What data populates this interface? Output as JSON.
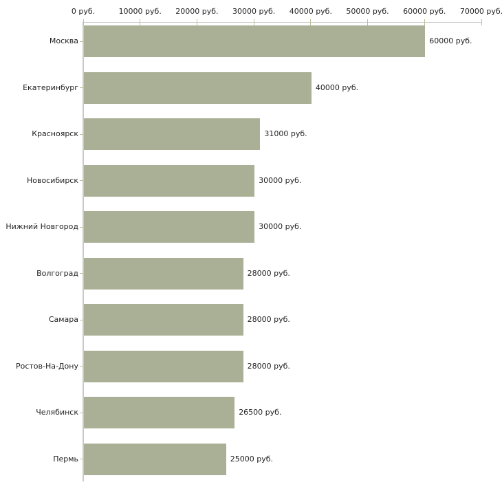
{
  "chart_data": {
    "type": "bar",
    "orientation": "horizontal",
    "title": "",
    "xlabel": "",
    "ylabel": "",
    "grid": false,
    "legend": "none",
    "categories": [
      "Москва",
      "Екатеринбург",
      "Красноярск",
      "Новосибирск",
      "Нижний Новгород",
      "Волгоград",
      "Самара",
      "Ростов-На-Дону",
      "Челябинск",
      "Пермь"
    ],
    "values": [
      60000,
      40000,
      31000,
      30000,
      30000,
      28000,
      28000,
      28000,
      26500,
      25000
    ],
    "value_labels": [
      "60000 руб.",
      "40000 руб.",
      "31000 руб.",
      "30000 руб.",
      "30000 руб.",
      "28000 руб.",
      "28000 руб.",
      "28000 руб.",
      "26500 руб.",
      "25000 руб."
    ],
    "x_axis": {
      "position": "top",
      "min": 0,
      "max": 70000,
      "ticks": [
        0,
        10000,
        20000,
        30000,
        40000,
        50000,
        60000,
        70000
      ],
      "tick_labels": [
        "0 руб.",
        "10000 руб.",
        "20000 руб.",
        "30000 руб.",
        "40000 руб.",
        "50000 руб.",
        "60000 руб.",
        "70000 руб."
      ],
      "unit": "руб."
    },
    "colors": {
      "bar": "#a9b095",
      "axis": "#c9c9c9",
      "tick": "#bdc09a",
      "text": "#222222",
      "background": "#ffffff"
    }
  }
}
